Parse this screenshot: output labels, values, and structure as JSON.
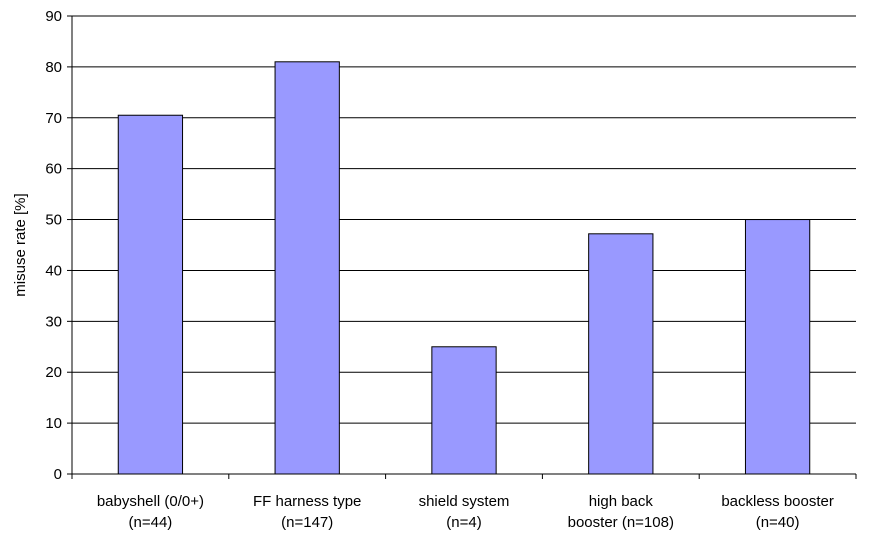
{
  "chart_data": {
    "type": "bar",
    "title": "",
    "xlabel": "",
    "ylabel": "misuse rate [%]",
    "ylim": [
      0,
      90
    ],
    "yticks": [
      0,
      10,
      20,
      30,
      40,
      50,
      60,
      70,
      80,
      90
    ],
    "grid": true,
    "legend": "none",
    "bar_color": "#9999ff",
    "categories": [
      [
        "babyshell (0/0+)",
        "(n=44)"
      ],
      [
        "FF harness type",
        "(n=147)"
      ],
      [
        "shield system",
        "(n=4)"
      ],
      [
        "high back",
        "booster (n=108)"
      ],
      [
        "backless booster",
        "(n=40)"
      ]
    ],
    "values": [
      70.5,
      81,
      25,
      47.2,
      50
    ]
  }
}
